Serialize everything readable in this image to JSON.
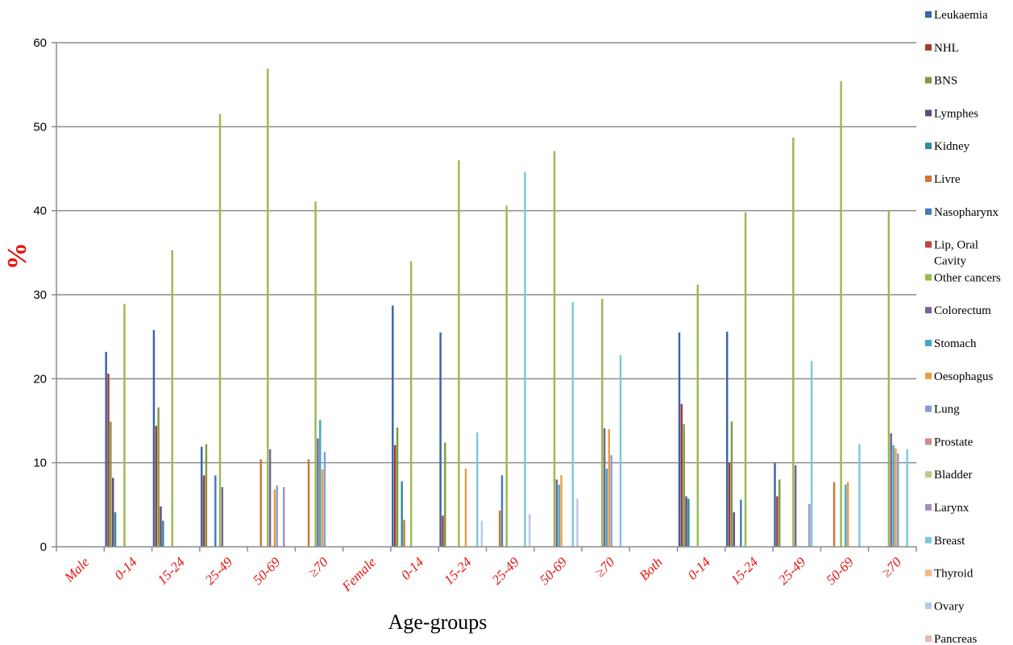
{
  "chart_data": {
    "type": "bar",
    "title": "",
    "xlabel": "Age-groups",
    "ylabel": "%",
    "ylim": [
      0,
      60
    ],
    "yticks": [
      0,
      10,
      20,
      30,
      40,
      50,
      60
    ],
    "grid": "horizontal",
    "legend_position": "right",
    "categories": [
      "Male",
      "0-14",
      "15-24",
      "25-49",
      "50-69",
      "≥70",
      "Female",
      "0-14",
      "15-24",
      "25-49",
      "50-69",
      "≥70",
      "Both",
      "0-14",
      "15-24",
      "25-49",
      "50-69",
      "≥70"
    ],
    "series": [
      {
        "name": "Leukaemia",
        "color": "#3b64a6",
        "values": [
          null,
          23.2,
          25.8,
          11.9,
          null,
          null,
          null,
          28.7,
          25.5,
          null,
          null,
          null,
          null,
          25.5,
          25.6,
          10.0,
          null,
          null
        ]
      },
      {
        "name": "NHL",
        "color": "#a33a37",
        "values": [
          null,
          20.6,
          14.4,
          8.5,
          null,
          null,
          null,
          12.1,
          3.7,
          null,
          null,
          null,
          null,
          17.0,
          10.0,
          6.0,
          null,
          null
        ]
      },
      {
        "name": "BNS",
        "color": "#7e9a44",
        "values": [
          null,
          14.9,
          16.6,
          12.2,
          null,
          null,
          null,
          14.2,
          12.4,
          null,
          null,
          null,
          null,
          14.6,
          14.9,
          8.0,
          null,
          null
        ]
      },
      {
        "name": "Lymphes",
        "color": "#604a7b",
        "values": [
          null,
          8.2,
          4.8,
          null,
          null,
          null,
          null,
          null,
          null,
          null,
          null,
          null,
          null,
          6.0,
          4.1,
          null,
          null,
          null
        ]
      },
      {
        "name": "Kidney",
        "color": "#2e8a9e",
        "values": [
          null,
          4.1,
          3.1,
          null,
          null,
          null,
          null,
          7.8,
          null,
          null,
          null,
          null,
          null,
          5.7,
          null,
          null,
          null,
          null
        ]
      },
      {
        "name": "Livre",
        "color": "#d07432",
        "values": [
          null,
          null,
          null,
          null,
          10.4,
          10.4,
          null,
          3.2,
          null,
          4.3,
          null,
          null,
          null,
          null,
          null,
          null,
          7.7,
          null
        ]
      },
      {
        "name": "Nasopharynx",
        "color": "#4479be",
        "values": [
          null,
          null,
          null,
          8.5,
          null,
          null,
          null,
          null,
          null,
          8.5,
          null,
          null,
          null,
          null,
          5.6,
          null,
          null,
          null
        ]
      },
      {
        "name": "Lip, Oral Cavity",
        "color": "#c0463d",
        "values": [
          null,
          null,
          null,
          null,
          null,
          null,
          null,
          null,
          null,
          null,
          null,
          null,
          null,
          null,
          null,
          null,
          null,
          null
        ]
      },
      {
        "name": "Other cancers",
        "color": "#98bb4f",
        "values": [
          null,
          28.9,
          35.3,
          51.5,
          56.9,
          41.1,
          null,
          34.0,
          46.0,
          40.6,
          47.1,
          29.5,
          null,
          31.2,
          39.8,
          48.7,
          55.4,
          40.0
        ]
      },
      {
        "name": "Colorectum",
        "color": "#7c629a",
        "values": [
          null,
          null,
          null,
          7.1,
          11.6,
          12.9,
          null,
          null,
          null,
          null,
          8.0,
          14.1,
          null,
          null,
          null,
          9.7,
          null,
          13.5
        ]
      },
      {
        "name": "Stomach",
        "color": "#44a8c3",
        "values": [
          null,
          null,
          null,
          null,
          null,
          15.1,
          null,
          null,
          null,
          null,
          7.4,
          9.3,
          null,
          null,
          null,
          null,
          7.4,
          12.1
        ]
      },
      {
        "name": "Oesophagus",
        "color": "#f29a43",
        "values": [
          null,
          null,
          null,
          null,
          6.8,
          9.2,
          null,
          null,
          9.3,
          null,
          8.5,
          14.0,
          null,
          null,
          null,
          null,
          7.7,
          11.7
        ]
      },
      {
        "name": "Lung",
        "color": "#849ed4",
        "values": [
          null,
          null,
          null,
          null,
          7.3,
          11.3,
          null,
          null,
          null,
          null,
          null,
          10.9,
          null,
          null,
          null,
          null,
          null,
          11.1
        ]
      },
      {
        "name": "Prostate",
        "color": "#d28a88",
        "values": [
          null,
          null,
          null,
          null,
          null,
          null,
          null,
          null,
          null,
          null,
          null,
          null,
          null,
          null,
          null,
          null,
          null,
          null
        ]
      },
      {
        "name": "Bladder",
        "color": "#b5cf8a",
        "values": [
          null,
          null,
          null,
          null,
          null,
          null,
          null,
          null,
          null,
          null,
          null,
          null,
          null,
          null,
          null,
          null,
          null,
          null
        ]
      },
      {
        "name": "Larynx",
        "color": "#a590c1",
        "values": [
          null,
          null,
          null,
          null,
          7.1,
          null,
          null,
          null,
          null,
          null,
          null,
          null,
          null,
          null,
          null,
          5.1,
          null,
          null
        ]
      },
      {
        "name": "Breast",
        "color": "#7ec7dc",
        "values": [
          null,
          null,
          null,
          null,
          null,
          null,
          null,
          null,
          13.6,
          44.6,
          29.1,
          22.8,
          null,
          null,
          null,
          22.1,
          12.2,
          11.6
        ]
      },
      {
        "name": "Thyroid",
        "color": "#f7b47c",
        "values": [
          null,
          null,
          null,
          null,
          null,
          null,
          null,
          null,
          null,
          null,
          null,
          null,
          null,
          null,
          null,
          null,
          null,
          null
        ]
      },
      {
        "name": "Ovary",
        "color": "#b9c8e3",
        "values": [
          null,
          null,
          null,
          null,
          null,
          null,
          null,
          null,
          3.1,
          3.9,
          5.7,
          null,
          null,
          null,
          null,
          null,
          null,
          null
        ]
      },
      {
        "name": "Pancreas",
        "color": "#e3b8b7",
        "values": [
          null,
          null,
          null,
          null,
          null,
          null,
          null,
          null,
          null,
          null,
          null,
          null,
          null,
          null,
          null,
          null,
          null,
          null
        ]
      }
    ]
  }
}
